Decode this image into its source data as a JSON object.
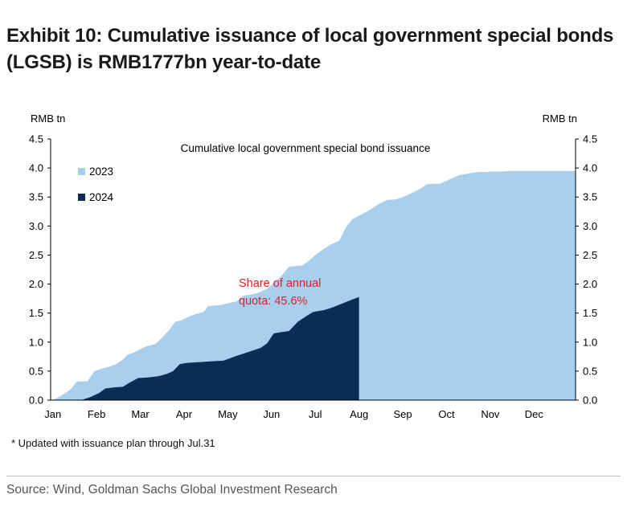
{
  "header": {
    "title_line1": "Exhibit 10: Cumulative issuance of local government special bonds",
    "title_line2": "(LGSB) is RMB1777bn year-to-date"
  },
  "colors": {
    "series_2023": "#a9cfee",
    "series_2024": "#0a2d55",
    "annotation": "#e31e24",
    "axis": "#000000"
  },
  "chart_data": {
    "type": "area",
    "title": "Cumulative local government special bond issuance",
    "ylabel_left": "RMB tn",
    "ylabel_right": "RMB tn",
    "ylim": [
      0,
      4.5
    ],
    "yticks": [
      "0.0",
      "0.5",
      "1.0",
      "1.5",
      "2.0",
      "2.5",
      "3.0",
      "3.5",
      "4.0",
      "4.5"
    ],
    "x_month_index_range": [
      0,
      12
    ],
    "month_labels": [
      "Jan",
      "Feb",
      "Mar",
      "Apr",
      "May",
      "Jun",
      "Jul",
      "Aug",
      "Sep",
      "Oct",
      "Nov",
      "Dec"
    ],
    "legend": [
      {
        "name": "2023",
        "color": "#a9cfee"
      },
      {
        "name": "2024",
        "color": "#0a2d55"
      }
    ],
    "legend_position": "top-left",
    "series": [
      {
        "name": "2023",
        "x": [
          0.0,
          0.1,
          0.25,
          0.45,
          0.6,
          0.75,
          0.85,
          1.0,
          1.2,
          1.35,
          1.5,
          1.65,
          1.75,
          1.9,
          2.05,
          2.2,
          2.4,
          2.55,
          2.7,
          2.85,
          3.0,
          3.1,
          3.3,
          3.5,
          3.6,
          3.75,
          3.9,
          4.05,
          4.25,
          4.4,
          4.6,
          4.75,
          4.95,
          5.1,
          5.25,
          5.45,
          5.6,
          5.75,
          5.9,
          6.05,
          6.25,
          6.4,
          6.6,
          6.75,
          6.9,
          7.1,
          7.3,
          7.5,
          7.7,
          7.9,
          8.05,
          8.2,
          8.4,
          8.6,
          8.75,
          8.9,
          9.05,
          9.2,
          9.35,
          9.5,
          9.65,
          9.8,
          9.95,
          10.1,
          10.3,
          10.5,
          10.65,
          10.8,
          10.95,
          11.1,
          11.3,
          11.5,
          11.65,
          11.8,
          12.0
        ],
        "values": [
          0.0,
          0.02,
          0.08,
          0.18,
          0.32,
          0.32,
          0.33,
          0.5,
          0.55,
          0.58,
          0.62,
          0.7,
          0.78,
          0.82,
          0.88,
          0.93,
          0.97,
          1.08,
          1.2,
          1.35,
          1.38,
          1.42,
          1.48,
          1.52,
          1.62,
          1.63,
          1.64,
          1.67,
          1.7,
          1.8,
          1.82,
          1.85,
          1.92,
          2.02,
          2.12,
          2.3,
          2.31,
          2.32,
          2.4,
          2.5,
          2.61,
          2.68,
          2.75,
          2.98,
          3.12,
          3.2,
          3.28,
          3.38,
          3.45,
          3.46,
          3.5,
          3.55,
          3.62,
          3.72,
          3.73,
          3.73,
          3.78,
          3.83,
          3.88,
          3.9,
          3.92,
          3.93,
          3.93,
          3.94,
          3.94,
          3.95,
          3.95,
          3.95,
          3.95,
          3.95,
          3.95,
          3.95,
          3.95,
          3.95,
          3.95
        ]
      },
      {
        "name": "2024",
        "x": [
          0.0,
          0.7,
          0.9,
          1.1,
          1.25,
          1.45,
          1.65,
          1.8,
          2.0,
          2.2,
          2.45,
          2.65,
          2.8,
          2.95,
          3.1,
          3.3,
          3.5,
          3.7,
          3.95,
          4.2,
          4.4,
          4.6,
          4.8,
          4.95,
          5.1,
          5.25,
          5.45,
          5.65,
          5.85,
          6.0,
          6.25,
          6.45,
          6.65,
          6.85,
          7.05,
          7.05
        ],
        "values": [
          0.0,
          0.0,
          0.05,
          0.12,
          0.2,
          0.22,
          0.23,
          0.3,
          0.38,
          0.39,
          0.41,
          0.45,
          0.5,
          0.62,
          0.64,
          0.65,
          0.66,
          0.67,
          0.68,
          0.75,
          0.8,
          0.85,
          0.9,
          0.98,
          1.15,
          1.17,
          1.19,
          1.35,
          1.45,
          1.52,
          1.55,
          1.6,
          1.66,
          1.72,
          1.777,
          0.0
        ]
      }
    ],
    "annotation": {
      "line1": "Share of annual",
      "line2": "quota: 45.6%",
      "anchor_x": 4.3,
      "anchor_y": 1.95
    }
  },
  "footnote": "* Updated with issuance plan through Jul.31",
  "source": "Source: Wind, Goldman Sachs Global Investment Research"
}
